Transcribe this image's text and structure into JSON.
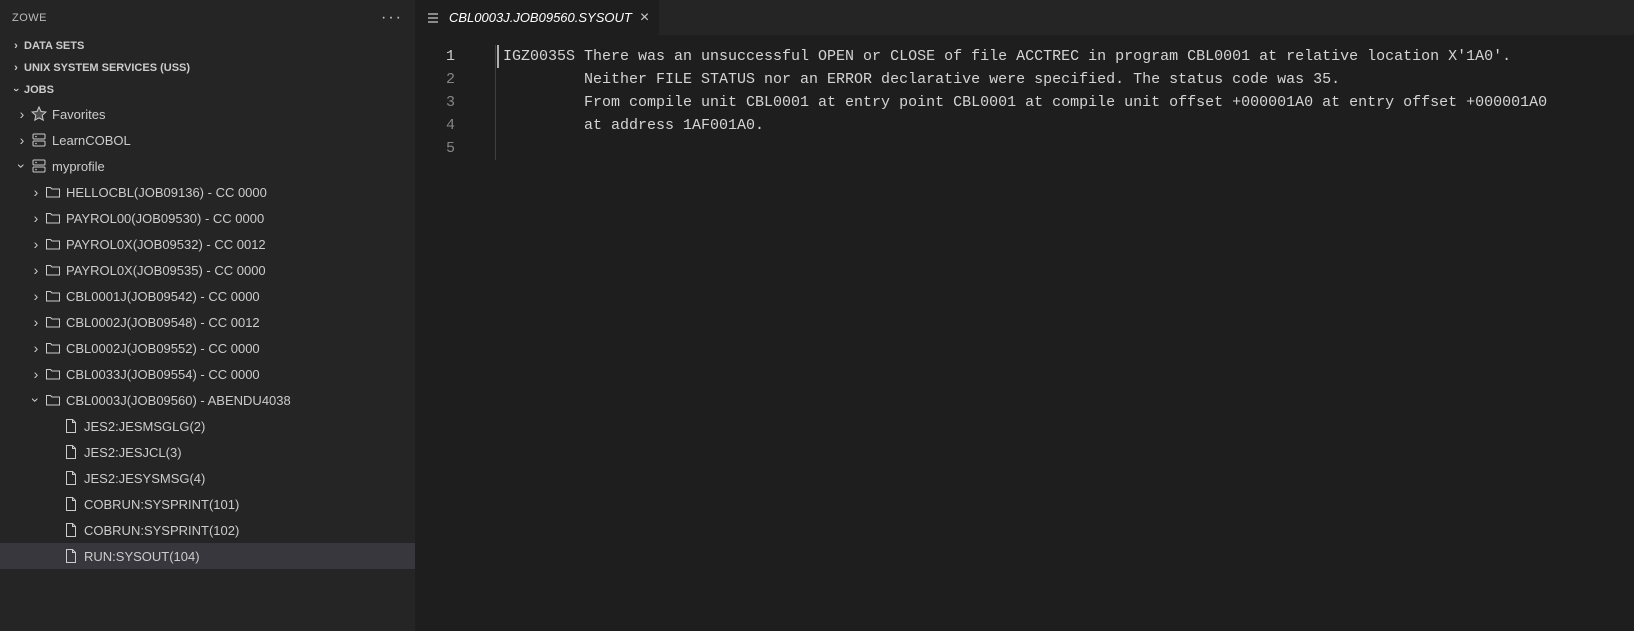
{
  "sidebar": {
    "title": "ZOWE",
    "sections": [
      {
        "label": "DATA SETS",
        "expanded": false
      },
      {
        "label": "UNIX SYSTEM SERVICES (USS)",
        "expanded": false
      },
      {
        "label": "JOBS",
        "expanded": true
      }
    ],
    "jobs": {
      "nodes": [
        {
          "label": "Favorites",
          "icon": "star",
          "expanded": false,
          "depth": 1
        },
        {
          "label": "LearnCOBOL",
          "icon": "server",
          "expanded": false,
          "depth": 1
        },
        {
          "label": "myprofile",
          "icon": "server",
          "expanded": true,
          "depth": 1
        }
      ],
      "profile_jobs": [
        {
          "label": "HELLOCBL(JOB09136) - CC 0000",
          "expanded": false
        },
        {
          "label": "PAYROL00(JOB09530) - CC 0000",
          "expanded": false
        },
        {
          "label": "PAYROL0X(JOB09532) - CC 0012",
          "expanded": false
        },
        {
          "label": "PAYROL0X(JOB09535) - CC 0000",
          "expanded": false
        },
        {
          "label": "CBL0001J(JOB09542) - CC 0000",
          "expanded": false
        },
        {
          "label": "CBL0002J(JOB09548) - CC 0012",
          "expanded": false
        },
        {
          "label": "CBL0002J(JOB09552) - CC 0000",
          "expanded": false
        },
        {
          "label": "CBL0033J(JOB09554) - CC 0000",
          "expanded": false
        },
        {
          "label": "CBL0003J(JOB09560) - ABENDU4038",
          "expanded": true
        }
      ],
      "outputs": [
        {
          "label": "JES2:JESMSGLG(2)"
        },
        {
          "label": "JES2:JESJCL(3)"
        },
        {
          "label": "JES2:JESYSMSG(4)"
        },
        {
          "label": "COBRUN:SYSPRINT(101)"
        },
        {
          "label": "COBRUN:SYSPRINT(102)"
        },
        {
          "label": "RUN:SYSOUT(104)",
          "selected": true
        }
      ]
    }
  },
  "editor": {
    "tab_title": "CBL0003J.JOB09560.SYSOUT",
    "lines": [
      "IGZ0035S There was an unsuccessful OPEN or CLOSE of file ACCTREC in program CBL0001 at relative location X'1A0'.",
      "         Neither FILE STATUS nor an ERROR declarative were specified. The status code was 35.",
      "         From compile unit CBL0001 at entry point CBL0001 at compile unit offset +000001A0 at entry offset +000001A0",
      "         at address 1AF001A0.",
      ""
    ],
    "line_numbers": [
      "1",
      "2",
      "3",
      "4",
      "5"
    ],
    "current_line": 1
  },
  "colors": {
    "bg": "#1e1e1e",
    "sidebar_bg": "#252526",
    "text": "#cccccc",
    "muted": "#858585",
    "selected": "#37373d"
  }
}
